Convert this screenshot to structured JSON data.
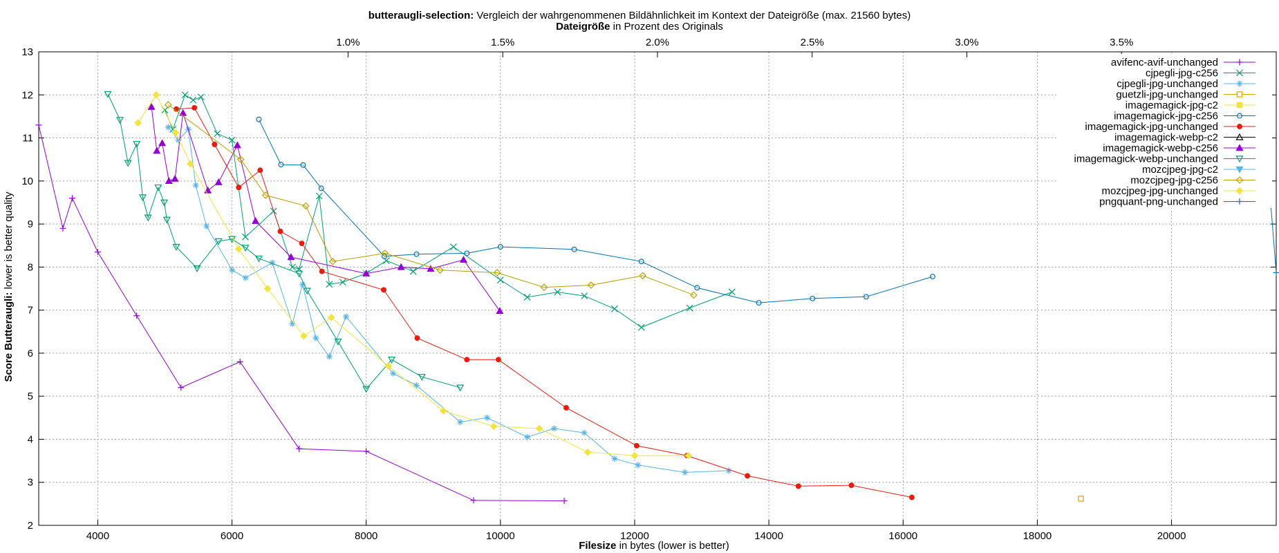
{
  "chart_data": {
    "type": "line",
    "title": {
      "bold": "butteraugli-selection:",
      "rest": "Vergleich der wahrgenommenen Bildähnlichkeit im Kontext der Dateigröße (max. 21560 bytes)"
    },
    "x2label": {
      "bold": "Dateigröße",
      "rest": "in Prozent des Originals"
    },
    "xlabel": {
      "bold": "Filesize",
      "rest": "in bytes (lower is better)"
    },
    "ylabel": {
      "bold": "Score Butteraugli:",
      "rest": "lower is better quality"
    },
    "xlim": [
      3120,
      21560
    ],
    "ylim": [
      2,
      13
    ],
    "x2lim": [
      0.0,
      4.0
    ],
    "xticks": [
      4000,
      6000,
      8000,
      10000,
      12000,
      14000,
      16000,
      18000,
      20000
    ],
    "xtick_labels": [
      "4000",
      "6000",
      "8000",
      "10000",
      "12000",
      "14000",
      "16000",
      "18000",
      "20000"
    ],
    "yticks": [
      2,
      3,
      4,
      5,
      6,
      7,
      8,
      9,
      10,
      11,
      12,
      13
    ],
    "ytick_labels": [
      "2",
      "3",
      "4",
      "5",
      "6",
      "7",
      "8",
      "9",
      "10",
      "11",
      "12",
      "13"
    ],
    "x2ticks": [
      1.0,
      1.5,
      2.0,
      2.5,
      3.0,
      3.5
    ],
    "x2tick_labels": [
      "1.0%",
      "1.5%",
      "2.0%",
      "2.5%",
      "3.0%",
      "3.5%"
    ],
    "grid": true,
    "legend_position": "top-right",
    "series": [
      {
        "name": "avifenc-avif-unchanged",
        "color": "#9400d3",
        "marker": "plus",
        "points": [
          [
            3120,
            11.3
          ],
          [
            3480,
            8.9
          ],
          [
            3620,
            9.6
          ],
          [
            4000,
            8.35
          ],
          [
            4580,
            6.87
          ],
          [
            5240,
            5.2
          ],
          [
            6120,
            5.8
          ],
          [
            7000,
            3.78
          ],
          [
            8000,
            3.72
          ],
          [
            9600,
            2.58
          ],
          [
            10950,
            2.57
          ]
        ]
      },
      {
        "name": "cjpegli-jpg-c256",
        "color": "#009e73",
        "marker": "x",
        "points": [
          [
            5000,
            11.65
          ],
          [
            5120,
            11.2
          ],
          [
            5300,
            12.0
          ],
          [
            5420,
            11.88
          ],
          [
            5540,
            11.95
          ],
          [
            5780,
            11.1
          ],
          [
            6000,
            10.95
          ],
          [
            6200,
            8.7
          ],
          [
            6620,
            9.3
          ],
          [
            6900,
            8.0
          ],
          [
            7000,
            7.95
          ],
          [
            7300,
            9.65
          ],
          [
            7450,
            7.6
          ],
          [
            7650,
            7.65
          ],
          [
            8000,
            7.85
          ],
          [
            8300,
            8.15
          ],
          [
            8700,
            7.9
          ],
          [
            9300,
            8.47
          ],
          [
            10000,
            7.7
          ],
          [
            10400,
            7.3
          ],
          [
            10850,
            7.42
          ],
          [
            11250,
            7.33
          ],
          [
            11700,
            7.03
          ],
          [
            12100,
            6.6
          ],
          [
            12820,
            7.05
          ],
          [
            13450,
            7.42
          ]
        ]
      },
      {
        "name": "cjpegli-jpg-unchanged",
        "color": "#56b4e9",
        "marker": "star",
        "points": [
          [
            5050,
            11.25
          ],
          [
            5200,
            10.95
          ],
          [
            5350,
            11.2
          ],
          [
            5460,
            9.9
          ],
          [
            5620,
            8.95
          ],
          [
            6000,
            7.93
          ],
          [
            6200,
            7.75
          ],
          [
            6600,
            8.1
          ],
          [
            6900,
            6.68
          ],
          [
            7050,
            7.6
          ],
          [
            7250,
            6.35
          ],
          [
            7450,
            5.92
          ],
          [
            7700,
            6.85
          ],
          [
            8400,
            5.53
          ],
          [
            8750,
            5.25
          ],
          [
            9400,
            4.4
          ],
          [
            9800,
            4.5
          ],
          [
            10400,
            4.05
          ],
          [
            10800,
            4.25
          ],
          [
            11250,
            4.15
          ],
          [
            11700,
            3.55
          ],
          [
            12050,
            3.4
          ],
          [
            12750,
            3.23
          ],
          [
            13400,
            3.27
          ]
        ]
      },
      {
        "name": "guetzli-jpg-unchanged",
        "color": "#e69f00",
        "marker": "square",
        "points": [
          [
            18650,
            2.62
          ]
        ]
      },
      {
        "name": "imagemagick-jpg-c2",
        "color": "#f0e442",
        "marker": "square-filled",
        "points": []
      },
      {
        "name": "imagemagick-jpg-c256",
        "color": "#0072b2",
        "marker": "circle",
        "points": [
          [
            6400,
            11.43
          ],
          [
            6730,
            10.38
          ],
          [
            7060,
            10.37
          ],
          [
            7330,
            9.83
          ],
          [
            8270,
            8.25
          ],
          [
            8750,
            8.3
          ],
          [
            9500,
            8.32
          ],
          [
            10000,
            8.47
          ],
          [
            11100,
            8.41
          ],
          [
            12100,
            8.13
          ],
          [
            12930,
            7.52
          ],
          [
            13850,
            7.17
          ],
          [
            14650,
            7.27
          ],
          [
            15450,
            7.31
          ],
          [
            16440,
            7.78
          ]
        ]
      },
      {
        "name": "imagemagick-jpg-unchanged",
        "color": "#e51e10",
        "marker": "circle-filled",
        "points": [
          [
            5170,
            11.67
          ],
          [
            5440,
            11.7
          ],
          [
            5740,
            10.85
          ],
          [
            6100,
            9.85
          ],
          [
            6420,
            10.25
          ],
          [
            6720,
            8.83
          ],
          [
            7040,
            8.55
          ],
          [
            7340,
            7.9
          ],
          [
            8260,
            7.47
          ],
          [
            8760,
            6.35
          ],
          [
            9500,
            5.85
          ],
          [
            9970,
            5.85
          ],
          [
            10980,
            4.73
          ],
          [
            12030,
            3.85
          ],
          [
            12780,
            3.62
          ],
          [
            13680,
            3.15
          ],
          [
            14440,
            2.91
          ],
          [
            15230,
            2.93
          ],
          [
            16130,
            2.65
          ]
        ]
      },
      {
        "name": "imagemagick-webp-c2",
        "color": "#000000",
        "marker": "triangle",
        "points": []
      },
      {
        "name": "imagemagick-webp-c256",
        "color": "#9400d3",
        "marker": "triangle-filled",
        "points": [
          [
            4800,
            11.72
          ],
          [
            4880,
            10.7
          ],
          [
            4960,
            10.88
          ],
          [
            5060,
            10.0
          ],
          [
            5150,
            10.05
          ],
          [
            5270,
            11.58
          ],
          [
            5640,
            9.78
          ],
          [
            5800,
            9.97
          ],
          [
            6080,
            10.83
          ],
          [
            6350,
            9.07
          ],
          [
            6880,
            8.23
          ],
          [
            8000,
            7.85
          ],
          [
            8520,
            8.0
          ],
          [
            8960,
            7.96
          ],
          [
            9450,
            8.17
          ],
          [
            9990,
            6.98
          ]
        ]
      },
      {
        "name": "imagemagick-webp-unchanged",
        "color": "#009e73",
        "marker": "triangle-down",
        "points": [
          [
            4150,
            12.02
          ],
          [
            4330,
            11.42
          ],
          [
            4450,
            10.42
          ],
          [
            4580,
            10.86
          ],
          [
            4670,
            9.62
          ],
          [
            4750,
            9.15
          ],
          [
            4900,
            9.85
          ],
          [
            4990,
            9.5
          ],
          [
            5030,
            9.1
          ],
          [
            5170,
            8.47
          ],
          [
            5480,
            7.97
          ],
          [
            5800,
            8.6
          ],
          [
            6000,
            8.65
          ],
          [
            6200,
            8.45
          ],
          [
            6400,
            8.2
          ],
          [
            7000,
            7.85
          ],
          [
            7120,
            7.45
          ],
          [
            7580,
            6.27
          ],
          [
            8000,
            5.17
          ],
          [
            8380,
            5.85
          ],
          [
            8830,
            5.45
          ],
          [
            9400,
            5.2
          ]
        ]
      },
      {
        "name": "mozcjpeg-jpg-c2",
        "color": "#56b4e9",
        "marker": "triangle-down-filled",
        "points": []
      },
      {
        "name": "mozcjpeg-jpg-c256",
        "color": "#bb9e00",
        "marker": "diamond",
        "points": [
          [
            5050,
            11.77
          ],
          [
            6130,
            10.5
          ],
          [
            6500,
            9.67
          ],
          [
            7100,
            9.42
          ],
          [
            7500,
            8.13
          ],
          [
            8280,
            8.32
          ],
          [
            9100,
            7.93
          ],
          [
            9950,
            7.87
          ],
          [
            10650,
            7.53
          ],
          [
            11350,
            7.58
          ],
          [
            12120,
            7.8
          ],
          [
            12880,
            7.35
          ]
        ]
      },
      {
        "name": "mozcjpeg-jpg-unchanged",
        "color": "#f0e442",
        "marker": "diamond-filled",
        "points": [
          [
            4600,
            11.35
          ],
          [
            4870,
            12.0
          ],
          [
            5160,
            11.12
          ],
          [
            5380,
            10.4
          ],
          [
            6100,
            8.42
          ],
          [
            6530,
            7.5
          ],
          [
            7070,
            6.4
          ],
          [
            7480,
            6.83
          ],
          [
            8330,
            5.7
          ],
          [
            9150,
            4.66
          ],
          [
            9900,
            4.3
          ],
          [
            10580,
            4.25
          ],
          [
            11300,
            3.7
          ],
          [
            12000,
            3.62
          ],
          [
            12800,
            3.62
          ]
        ]
      },
      {
        "name": "pngquant-png-unchanged",
        "color": "#0072b2",
        "marker": "plus",
        "points": [
          [
            21380,
            11.38
          ],
          [
            21560,
            7.87
          ]
        ]
      }
    ]
  }
}
